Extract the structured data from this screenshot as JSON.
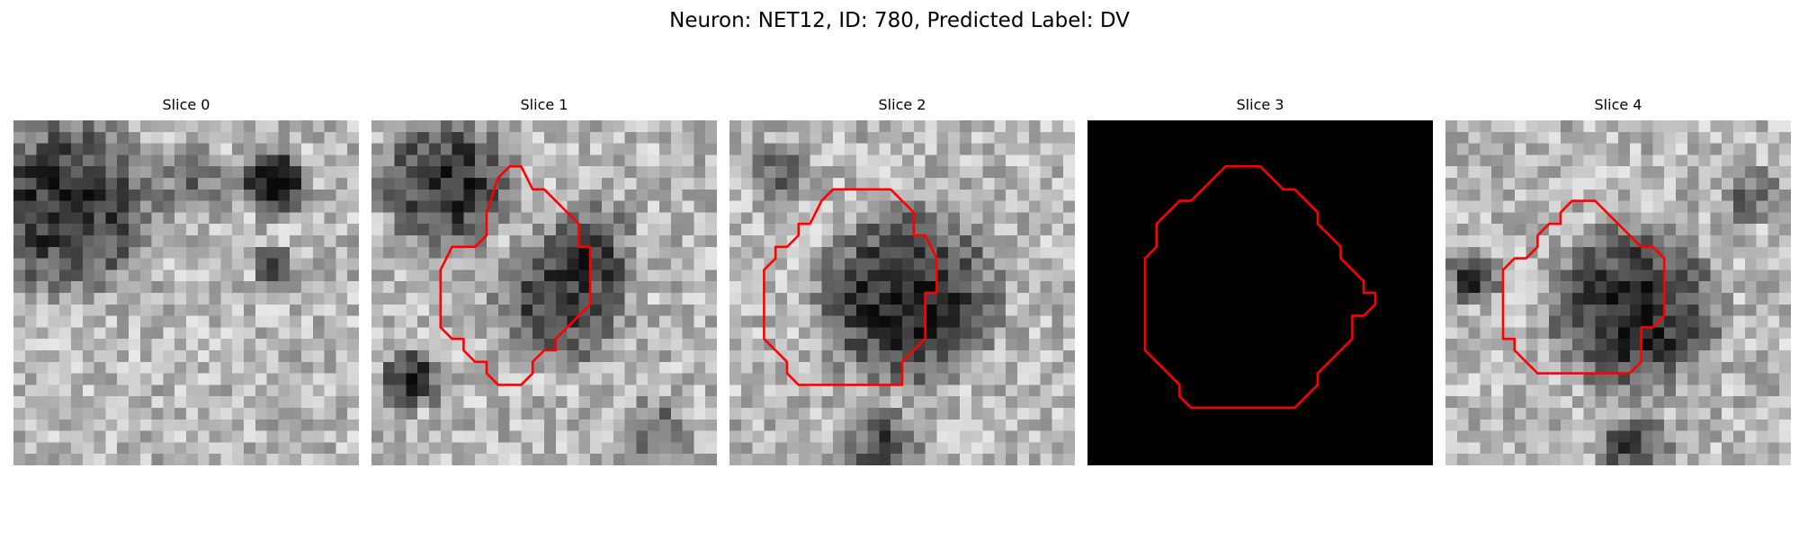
{
  "figure": {
    "title": "Neuron: NET12, ID: 780, Predicted Label: DV"
  },
  "panels": [
    {
      "title": "Slice 0",
      "seed": 11,
      "blank": false,
      "contour": null
    },
    {
      "title": "Slice 1",
      "seed": 23,
      "blank": false,
      "contour": [
        [
          12,
          4
        ],
        [
          13,
          4
        ],
        [
          14,
          6
        ],
        [
          15,
          6
        ],
        [
          16,
          7
        ],
        [
          17,
          8
        ],
        [
          18,
          9
        ],
        [
          18,
          11
        ],
        [
          19,
          11
        ],
        [
          19,
          16
        ],
        [
          18,
          17
        ],
        [
          17,
          18
        ],
        [
          16,
          19
        ],
        [
          16,
          20
        ],
        [
          15,
          20
        ],
        [
          14,
          21
        ],
        [
          14,
          22
        ],
        [
          13,
          23
        ],
        [
          12,
          23
        ],
        [
          11,
          23
        ],
        [
          10,
          22
        ],
        [
          10,
          21
        ],
        [
          9,
          21
        ],
        [
          8,
          20
        ],
        [
          8,
          19
        ],
        [
          7,
          19
        ],
        [
          6,
          18
        ],
        [
          6,
          13
        ],
        [
          7,
          11
        ],
        [
          9,
          11
        ],
        [
          10,
          10
        ],
        [
          10,
          8
        ],
        [
          11,
          5
        ],
        [
          12,
          4
        ]
      ]
    },
    {
      "title": "Slice 2",
      "seed": 37,
      "blank": false,
      "contour": [
        [
          9,
          6
        ],
        [
          14,
          6
        ],
        [
          15,
          7
        ],
        [
          16,
          8
        ],
        [
          16,
          10
        ],
        [
          17,
          10
        ],
        [
          18,
          12
        ],
        [
          18,
          15
        ],
        [
          17,
          15
        ],
        [
          17,
          19
        ],
        [
          16,
          20
        ],
        [
          15,
          21
        ],
        [
          15,
          23
        ],
        [
          6,
          23
        ],
        [
          5,
          22
        ],
        [
          5,
          21
        ],
        [
          4,
          20
        ],
        [
          4,
          20
        ],
        [
          3,
          19
        ],
        [
          3,
          13
        ],
        [
          4,
          12
        ],
        [
          4,
          11
        ],
        [
          5,
          11
        ],
        [
          6,
          10
        ],
        [
          6,
          9
        ],
        [
          7,
          9
        ],
        [
          8,
          7
        ],
        [
          9,
          6
        ]
      ]
    },
    {
      "title": "Slice 3",
      "seed": 53,
      "blank": true,
      "contour": [
        [
          12,
          4
        ],
        [
          15,
          4
        ],
        [
          16,
          5
        ],
        [
          17,
          6
        ],
        [
          18,
          6
        ],
        [
          19,
          7
        ],
        [
          20,
          8
        ],
        [
          20,
          9
        ],
        [
          21,
          10
        ],
        [
          22,
          11
        ],
        [
          22,
          12
        ],
        [
          23,
          13
        ],
        [
          24,
          14
        ],
        [
          24,
          15
        ],
        [
          25,
          15
        ],
        [
          25,
          16
        ],
        [
          24,
          17
        ],
        [
          23,
          17
        ],
        [
          23,
          19
        ],
        [
          22,
          20
        ],
        [
          21,
          21
        ],
        [
          20,
          22
        ],
        [
          20,
          23
        ],
        [
          19,
          24
        ],
        [
          18,
          25
        ],
        [
          9,
          25
        ],
        [
          8,
          24
        ],
        [
          8,
          23
        ],
        [
          7,
          22
        ],
        [
          7,
          22
        ],
        [
          6,
          21
        ],
        [
          6,
          21
        ],
        [
          5,
          20
        ],
        [
          5,
          12
        ],
        [
          6,
          11
        ],
        [
          6,
          9
        ],
        [
          7,
          8
        ],
        [
          8,
          7
        ],
        [
          9,
          7
        ],
        [
          10,
          6
        ],
        [
          11,
          5
        ],
        [
          12,
          4
        ]
      ]
    },
    {
      "title": "Slice 4",
      "seed": 71,
      "blank": false,
      "contour": [
        [
          11,
          7
        ],
        [
          13,
          7
        ],
        [
          14,
          8
        ],
        [
          15,
          9
        ],
        [
          16,
          10
        ],
        [
          17,
          11
        ],
        [
          18,
          11
        ],
        [
          19,
          12
        ],
        [
          19,
          17
        ],
        [
          18,
          18
        ],
        [
          17,
          18
        ],
        [
          17,
          21
        ],
        [
          16,
          22
        ],
        [
          8,
          22
        ],
        [
          7,
          21
        ],
        [
          7,
          21
        ],
        [
          6,
          20
        ],
        [
          6,
          19
        ],
        [
          5,
          19
        ],
        [
          5,
          13
        ],
        [
          6,
          12
        ],
        [
          7,
          12
        ],
        [
          8,
          11
        ],
        [
          8,
          10
        ],
        [
          9,
          9
        ],
        [
          10,
          9
        ],
        [
          10,
          8
        ],
        [
          11,
          7
        ]
      ]
    }
  ],
  "colors": {
    "contour": "#ff0000",
    "blank_background": "#000000"
  }
}
